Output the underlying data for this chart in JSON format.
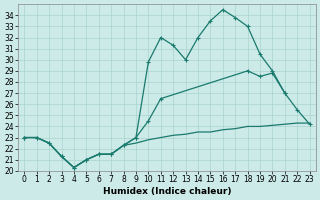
{
  "xlabel": "Humidex (Indice chaleur)",
  "bg_color": "#cceae7",
  "grid_color": "#aad4d0",
  "line_color": "#1a7a6e",
  "ylim": [
    20,
    35
  ],
  "xlim": [
    -0.5,
    23.5
  ],
  "yticks": [
    20,
    21,
    22,
    23,
    24,
    25,
    26,
    27,
    28,
    29,
    30,
    31,
    32,
    33,
    34
  ],
  "xticks": [
    0,
    1,
    2,
    3,
    4,
    5,
    6,
    7,
    8,
    9,
    10,
    11,
    12,
    13,
    14,
    15,
    16,
    17,
    18,
    19,
    20,
    21,
    22,
    23
  ],
  "line1_x": [
    0,
    1,
    2,
    3,
    4,
    5,
    6,
    7,
    8,
    9,
    10,
    11,
    12,
    13,
    14,
    15,
    16,
    17,
    18,
    19,
    20,
    21
  ],
  "line1_y": [
    23.0,
    23.0,
    22.5,
    21.3,
    20.3,
    21.0,
    21.5,
    21.5,
    22.3,
    23.0,
    29.8,
    32.0,
    31.3,
    30.0,
    32.0,
    33.5,
    34.5,
    33.8,
    33.0,
    30.5,
    29.0,
    27.0
  ],
  "line2_x": [
    0,
    1,
    2,
    3,
    4,
    5,
    6,
    7,
    8,
    9,
    10,
    11,
    18,
    19,
    20,
    21,
    22,
    23
  ],
  "line2_y": [
    23.0,
    23.0,
    22.5,
    21.3,
    20.3,
    21.0,
    21.5,
    21.5,
    22.3,
    23.0,
    24.5,
    26.5,
    29.0,
    28.5,
    28.8,
    27.0,
    25.5,
    24.2
  ],
  "line3_x": [
    0,
    1,
    2,
    3,
    4,
    5,
    6,
    7,
    8,
    9,
    10,
    11,
    12,
    13,
    14,
    15,
    16,
    17,
    18,
    19,
    20,
    21,
    22,
    23
  ],
  "line3_y": [
    23.0,
    23.0,
    22.5,
    21.3,
    20.3,
    21.0,
    21.5,
    21.5,
    22.3,
    22.5,
    22.8,
    23.0,
    23.2,
    23.3,
    23.5,
    23.5,
    23.7,
    23.8,
    24.0,
    24.0,
    24.1,
    24.2,
    24.3,
    24.3
  ]
}
